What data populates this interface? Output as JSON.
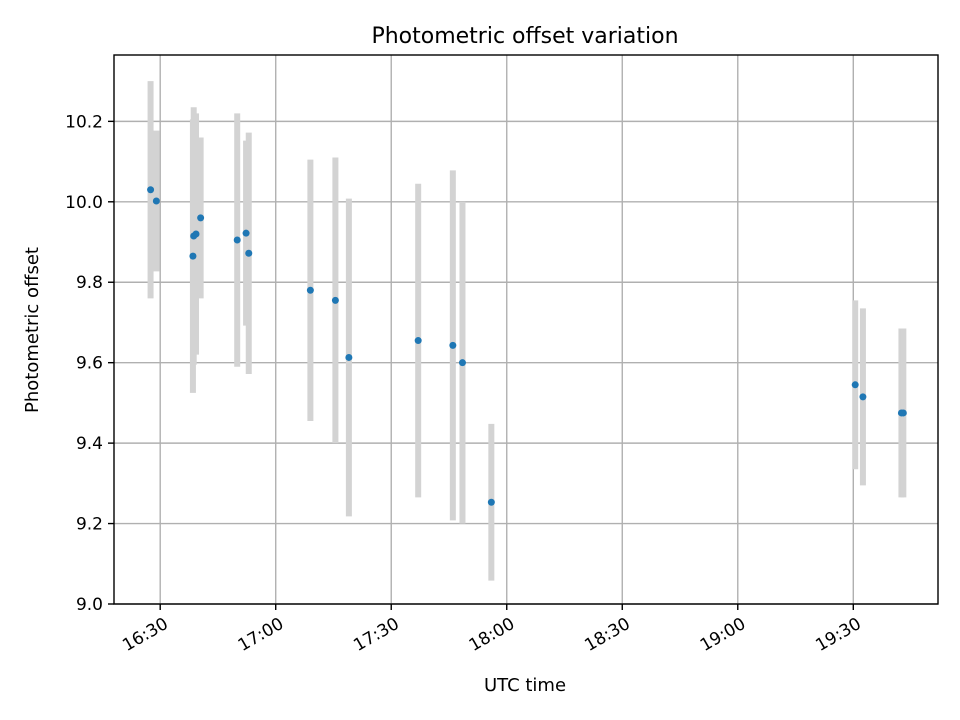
{
  "chart_data": {
    "type": "scatter",
    "title": "Photometric offset variation",
    "xlabel": "UTC time",
    "ylabel": "Photometric offset",
    "x_unit": "HH:MM (UTC)",
    "xlim": [
      "16:18",
      "19:52"
    ],
    "ylim": [
      9.0,
      10.365
    ],
    "x_ticks": [
      "16:30",
      "17:00",
      "17:30",
      "18:00",
      "18:30",
      "19:00",
      "19:30"
    ],
    "y_ticks": [
      "9.0",
      "9.2",
      "9.4",
      "9.6",
      "9.8",
      "10.0",
      "10.2"
    ],
    "grid": true,
    "colors": {
      "point": "#1f77b4",
      "errorbar": "#d3d3d3",
      "grid": "#b0b0b0"
    },
    "series": [
      {
        "points": [
          {
            "x": "16:27.5",
            "y": 10.03,
            "err": 0.27
          },
          {
            "x": "16:29.0",
            "y": 10.002,
            "err": 0.175
          },
          {
            "x": "16:38.5",
            "y": 9.865,
            "err": 0.34
          },
          {
            "x": "16:38.7",
            "y": 9.915,
            "err": 0.32
          },
          {
            "x": "16:39.3",
            "y": 9.92,
            "err": 0.3
          },
          {
            "x": "16:40.5",
            "y": 9.96,
            "err": 0.2
          },
          {
            "x": "16:50.0",
            "y": 9.905,
            "err": 0.315
          },
          {
            "x": "16:52.3",
            "y": 9.922,
            "err": 0.23
          },
          {
            "x": "16:53.0",
            "y": 9.872,
            "err": 0.3
          },
          {
            "x": "17:09.0",
            "y": 9.78,
            "err": 0.325
          },
          {
            "x": "17:15.5",
            "y": 9.755,
            "err": 0.355
          },
          {
            "x": "17:19.0",
            "y": 9.613,
            "err": 0.395
          },
          {
            "x": "17:37.0",
            "y": 9.655,
            "err": 0.39
          },
          {
            "x": "17:46.0",
            "y": 9.643,
            "err": 0.435
          },
          {
            "x": "17:48.5",
            "y": 9.6,
            "err": 0.4
          },
          {
            "x": "17:56.0",
            "y": 9.253,
            "err": 0.195
          },
          {
            "x": "19:30.5",
            "y": 9.545,
            "err": 0.21
          },
          {
            "x": "19:32.5",
            "y": 9.515,
            "err": 0.22
          },
          {
            "x": "19:42.5",
            "y": 9.475,
            "err": 0.21
          },
          {
            "x": "19:43.0",
            "y": 9.475,
            "err": 0.21
          }
        ]
      }
    ]
  }
}
